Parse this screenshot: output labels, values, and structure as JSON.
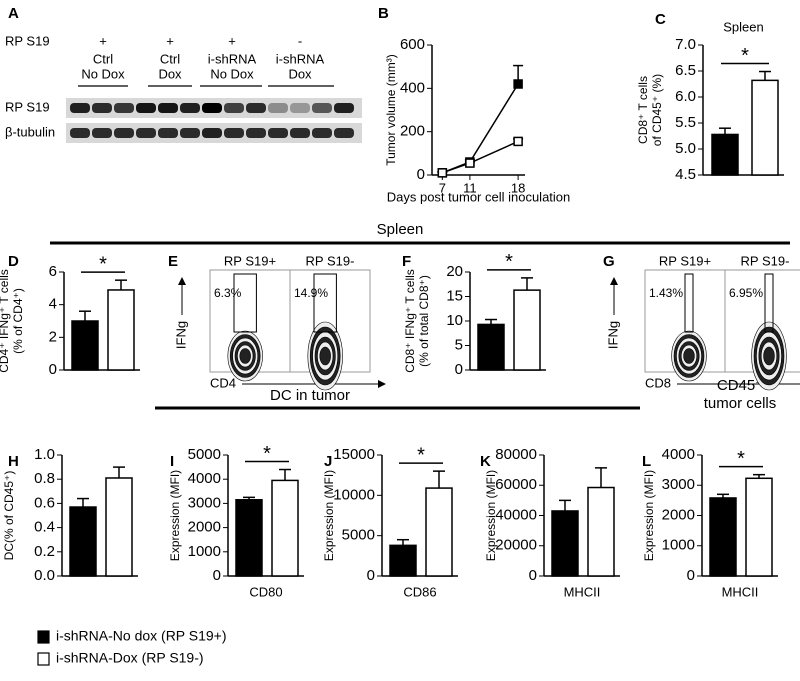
{
  "panel_letters": [
    "A",
    "B",
    "C",
    "D",
    "E",
    "F",
    "G",
    "H",
    "I",
    "J",
    "K",
    "L"
  ],
  "blot": {
    "condition_label": "RP S19",
    "lanes": [
      {
        "sign": "+",
        "name": [
          "Ctrl",
          "No Dox"
        ]
      },
      {
        "sign": "+",
        "name": [
          "Ctrl",
          "Dox"
        ]
      },
      {
        "sign": "+",
        "name": [
          "i-shRNA",
          "No Dox"
        ]
      },
      {
        "sign": "-",
        "name": [
          "i-shRNA",
          "Dox"
        ]
      }
    ],
    "rows": [
      "RP S19",
      "β-tubulin"
    ]
  },
  "sections": [
    "Spleen",
    "DC in tumor"
  ],
  "cd45_heading": [
    "CD45⁻",
    "tumor cells"
  ],
  "flow": [
    {
      "y_label": "IFNg",
      "x_label": "CD4",
      "plots": [
        {
          "title": "RP S19+",
          "gate": "6.3%"
        },
        {
          "title": "RP S19-",
          "gate": "14.9%"
        }
      ]
    },
    {
      "y_label": "IFNg",
      "x_label": "CD8",
      "plots": [
        {
          "title": "RP S19+",
          "gate": "1.43%"
        },
        {
          "title": "RP S19-",
          "gate": "6.95%"
        }
      ]
    }
  ],
  "legend": [
    {
      "label": "i-shRNA-No dox (RP S19+)",
      "color": "#000000"
    },
    {
      "label": "i-shRNA-Dox (RP S19-)",
      "color": "#ffffff"
    }
  ],
  "chart_data": [
    {
      "type": "line",
      "xlabel": "Days post tumor cell inoculation",
      "ylabel": [
        "Tumor volume (mm³)"
      ],
      "x": [
        7,
        11,
        18
      ],
      "xlim": [
        5.5,
        19
      ],
      "xticks": [
        7,
        11,
        18
      ],
      "ylim": [
        0,
        600
      ],
      "yticks": [
        0,
        200,
        400,
        600
      ],
      "series": [
        {
          "color": "#000000",
          "values": [
            10,
            60,
            420
          ],
          "errors": [
            5,
            10,
            85
          ]
        },
        {
          "color": "#ffffff",
          "values": [
            10,
            55,
            155
          ],
          "errors": [
            3,
            5,
            12
          ]
        }
      ]
    },
    {
      "type": "bar",
      "title": "Spleen",
      "ylabel": [
        "CD8⁺ T cells",
        "of CD45⁺ (%)"
      ],
      "values": [
        5.28,
        6.32
      ],
      "errors": [
        0.12,
        0.17
      ],
      "colors": [
        "#000000",
        "#ffffff"
      ],
      "significance": "*",
      "ylim": [
        4.5,
        7.0
      ],
      "yticks": [
        4.5,
        {
          "value": 5,
          "label": "5.0"
        },
        5.5,
        {
          "value": 6,
          "label": "6.0"
        },
        6.5,
        {
          "value": 7,
          "label": "7.0"
        }
      ]
    },
    {
      "type": "bar",
      "ylabel": [
        "CD4⁺ IFNg⁺ T cells",
        "(% of CD4⁺)"
      ],
      "values": [
        3.0,
        4.9
      ],
      "errors": [
        0.6,
        0.6
      ],
      "colors": [
        "#000000",
        "#ffffff"
      ],
      "significance": "*",
      "ylim": [
        0,
        6
      ],
      "yticks": [
        0,
        2,
        4,
        6
      ]
    },
    {
      "type": "bar",
      "ylabel": [
        "CD8⁺ IFNg⁺ T cells",
        "(% of total CD8⁺)"
      ],
      "values": [
        9.3,
        16.3
      ],
      "errors": [
        1.0,
        2.5
      ],
      "colors": [
        "#000000",
        "#ffffff"
      ],
      "significance": "*",
      "ylim": [
        0,
        20
      ],
      "yticks": [
        0,
        5,
        10,
        15,
        20
      ]
    },
    {
      "type": "bar",
      "ylabel": [
        "DC(% of CD45⁺)"
      ],
      "values": [
        0.57,
        0.81
      ],
      "errors": [
        0.07,
        0.09
      ],
      "colors": [
        "#000000",
        "#ffffff"
      ],
      "ylim": [
        0,
        1.0
      ],
      "yticks": [
        {
          "value": 0,
          "label": "0.0"
        },
        0.2,
        0.4,
        0.6,
        0.8,
        {
          "value": 1,
          "label": "1.0"
        }
      ]
    },
    {
      "type": "bar",
      "ylabel": [
        "Expression (MFI)"
      ],
      "xlabel": "CD80",
      "values": [
        3150,
        3950
      ],
      "errors": [
        100,
        450
      ],
      "colors": [
        "#000000",
        "#ffffff"
      ],
      "significance": "*",
      "ylim": [
        0,
        5000
      ],
      "yticks": [
        0,
        1000,
        2000,
        3000,
        4000,
        5000
      ]
    },
    {
      "type": "bar",
      "ylabel": [
        "Expression (MFI)"
      ],
      "xlabel": "CD86",
      "values": [
        3800,
        10900
      ],
      "errors": [
        700,
        2100
      ],
      "colors": [
        "#000000",
        "#ffffff"
      ],
      "significance": "*",
      "ylim": [
        0,
        15000
      ],
      "yticks": [
        0,
        5000,
        10000,
        15000
      ]
    },
    {
      "type": "bar",
      "ylabel": [
        "Expression (MFI)"
      ],
      "xlabel": "MHCII",
      "values": [
        43000,
        58500
      ],
      "errors": [
        7000,
        13000
      ],
      "colors": [
        "#000000",
        "#ffffff"
      ],
      "ylim": [
        0,
        80000
      ],
      "yticks": [
        0,
        20000,
        40000,
        60000,
        80000
      ]
    },
    {
      "type": "bar",
      "ylabel": [
        "Expression (MFI)"
      ],
      "xlabel": "MHCII",
      "values": [
        2580,
        3230
      ],
      "errors": [
        120,
        120
      ],
      "colors": [
        "#000000",
        "#ffffff"
      ],
      "significance": "*",
      "ylim": [
        0,
        4000
      ],
      "yticks": [
        0,
        1000,
        2000,
        3000,
        4000
      ]
    }
  ]
}
